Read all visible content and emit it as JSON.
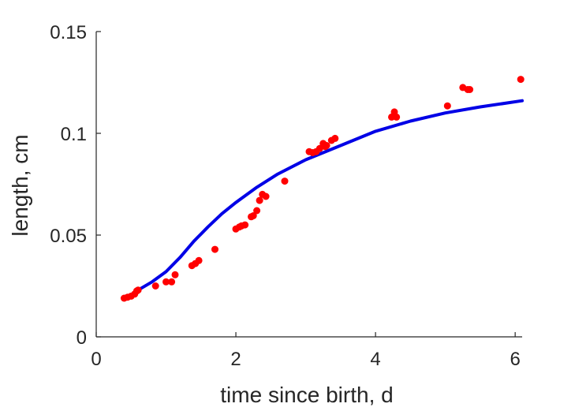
{
  "chart_data": {
    "type": "scatter",
    "title": "",
    "xlabel": "time since birth, d",
    "ylabel": "length, cm",
    "xlim": [
      0,
      6.1
    ],
    "ylim": [
      0,
      0.15
    ],
    "xticks": [
      0,
      2,
      4,
      6
    ],
    "xtick_labels": [
      "0",
      "2",
      "4",
      "6"
    ],
    "yticks": [
      0,
      0.05,
      0.1,
      0.15
    ],
    "ytick_labels": [
      "0",
      "0.05",
      "0.1",
      "0.15"
    ],
    "grid": false,
    "legend": "none",
    "colors": {
      "points": "#ff0000",
      "curve": "#0000e6",
      "axes": "#262626"
    },
    "series": [
      {
        "kind": "scatter",
        "x": [
          0.4,
          0.45,
          0.5,
          0.55,
          0.58,
          0.6,
          0.85,
          1.0,
          1.08,
          1.13,
          1.37,
          1.42,
          1.47,
          1.7,
          2.0,
          2.05,
          2.08,
          2.13,
          2.22,
          2.25,
          2.3,
          2.34,
          2.38,
          2.43,
          2.7,
          3.05,
          3.1,
          3.15,
          3.2,
          3.25,
          3.28,
          3.3,
          3.37,
          3.42,
          4.23,
          4.27,
          4.3,
          5.03,
          5.25,
          5.32,
          5.35,
          6.08
        ],
        "y": [
          0.019,
          0.0195,
          0.02,
          0.021,
          0.0225,
          0.023,
          0.025,
          0.027,
          0.027,
          0.0305,
          0.035,
          0.036,
          0.0375,
          0.043,
          0.053,
          0.054,
          0.0545,
          0.055,
          0.059,
          0.0595,
          0.062,
          0.067,
          0.07,
          0.069,
          0.0765,
          0.091,
          0.0905,
          0.091,
          0.0925,
          0.095,
          0.0935,
          0.094,
          0.0965,
          0.0975,
          0.108,
          0.1105,
          0.108,
          0.1135,
          0.1225,
          0.1215,
          0.1215,
          0.1265
        ]
      },
      {
        "kind": "line",
        "x": [
          0.4,
          0.6,
          0.8,
          1.0,
          1.2,
          1.4,
          1.6,
          1.8,
          2.0,
          2.3,
          2.6,
          3.0,
          3.5,
          4.0,
          4.5,
          5.0,
          5.5,
          6.1
        ],
        "y": [
          0.0185,
          0.023,
          0.027,
          0.032,
          0.039,
          0.047,
          0.054,
          0.0605,
          0.066,
          0.0735,
          0.08,
          0.087,
          0.094,
          0.101,
          0.106,
          0.11,
          0.113,
          0.116
        ]
      }
    ]
  }
}
